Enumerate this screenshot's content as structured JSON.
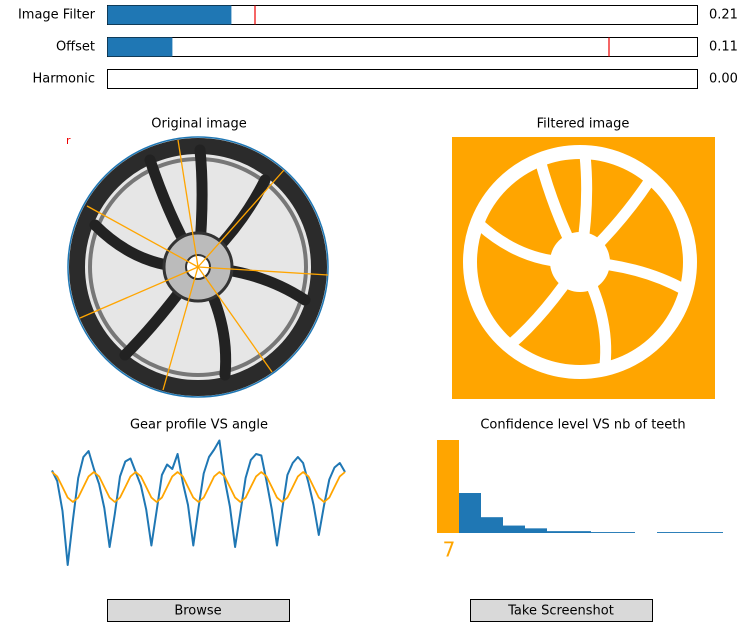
{
  "sliders": [
    {
      "label": "Image Filter",
      "value": 0.21,
      "value_label": "0.21",
      "marker": 0.25
    },
    {
      "label": "Offset",
      "value": 0.11,
      "value_label": "0.11",
      "marker": 0.85
    },
    {
      "label": "Harmonic",
      "value": 0,
      "value_label": "0.00"
    }
  ],
  "panels": {
    "original_title": "Original image",
    "filtered_title": "Filtered image",
    "marker_text": "r"
  },
  "chart_data": [
    {
      "type": "line",
      "title": "Gear profile VS angle",
      "series": [
        {
          "color": "#1f77b4",
          "values": [
            1.1,
            0.4,
            -1.6,
            -5.2,
            -2.2,
            0.6,
            2.0,
            2.4,
            1.2,
            0.2,
            -1.4,
            -4.0,
            -1.8,
            0.7,
            1.7,
            1.9,
            1.0,
            0.1,
            -1.5,
            -3.9,
            -1.6,
            0.8,
            1.5,
            1.2,
            2.2,
            0.3,
            -1.2,
            -3.9,
            -1.4,
            0.9,
            2.0,
            2.5,
            3.1,
            0.5,
            -1.3,
            -4.0,
            -1.7,
            0.6,
            1.8,
            2.2,
            2.1,
            0.4,
            -1.5,
            -3.9,
            -1.5,
            0.8,
            1.6,
            2.0,
            1.6,
            0.3,
            -1.2,
            -3.2,
            -1.2,
            0.5,
            1.3,
            1.6,
            1.0
          ]
        },
        {
          "color": "#ffa500",
          "values": [
            1,
            0.71,
            0,
            -0.71,
            -1,
            -0.71,
            0,
            0.71,
            1,
            0.71,
            0,
            -0.71,
            -1,
            -0.71,
            0,
            0.71,
            1,
            0.71,
            0,
            -0.71,
            -1,
            -0.71,
            0,
            0.71,
            1,
            0.71,
            0,
            -0.71,
            -1,
            -0.71,
            0,
            0.71,
            1,
            0.71,
            0,
            -0.71,
            -1,
            -0.71,
            0,
            0.71,
            1,
            0.71,
            0,
            -0.71,
            -1,
            -0.71,
            0,
            0.71,
            1,
            0.71,
            0,
            -0.71,
            -1,
            -0.71,
            0,
            0.71,
            1
          ]
        }
      ]
    },
    {
      "type": "bar",
      "title": "Confidence level VS nb of teeth",
      "values": [
        1.0,
        0.43,
        0.17,
        0.08,
        0.05,
        0.02,
        0.02,
        0.01,
        0.01,
        0,
        0.01,
        0.01,
        0.01
      ],
      "color": "#1f77b4",
      "highlight_color": "#ffa500",
      "best": 7
    }
  ],
  "buttons": [
    "Browse",
    "Take Screenshot"
  ]
}
